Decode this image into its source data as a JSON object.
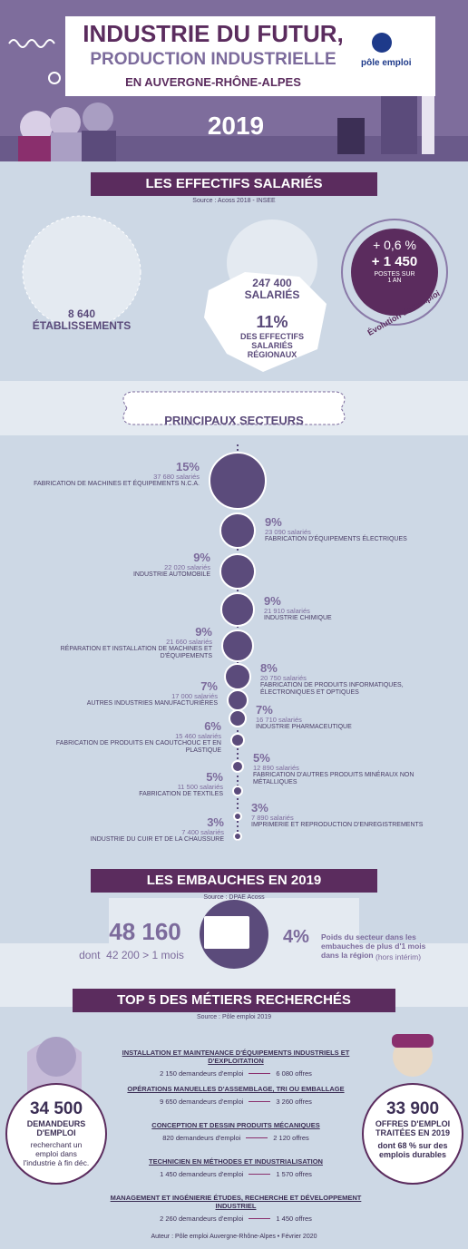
{
  "header": {
    "title": "INDUSTRIE DU FUTUR,",
    "subtitle": "PRODUCTION INDUSTRIELLE",
    "region": "EN AUVERGNE-RHÔNE-ALPES",
    "year": "2019",
    "logo": "pôle emploi"
  },
  "effectifs": {
    "title": "LES EFFECTIFS SALARIÉS",
    "source": "Source : Acoss 2018 - INSEE",
    "etablissements": {
      "value": "8 640",
      "label": "ÉTABLISSEMENTS"
    },
    "salaries": {
      "value": "247 400",
      "label": "SALARIÉS"
    },
    "share": {
      "value": "11%",
      "label": "DES EFFECTIFS SALARIÉS RÉGIONAUX"
    },
    "evolution": {
      "pct": "+ 0,6 %",
      "count": "+ 1 450",
      "label": "POSTES SUR 1 AN",
      "caption": "Évolution de l'emploi"
    }
  },
  "secteurs": {
    "title": "PRINCIPAUX SECTEURS",
    "items": [
      {
        "pct": "15%",
        "count": "37 680 salariés",
        "label": "FABRICATION DE MACHINES ET ÉQUIPEMENTS N.C.A."
      },
      {
        "pct": "9%",
        "count": "23 090 salariés",
        "label": "FABRICATION D'ÉQUIPEMENTS ÉLECTRIQUES"
      },
      {
        "pct": "9%",
        "count": "22 020 salariés",
        "label": "INDUSTRIE AUTOMOBILE"
      },
      {
        "pct": "9%",
        "count": "21 910 salariés",
        "label": "INDUSTRIE CHIMIQUE"
      },
      {
        "pct": "9%",
        "count": "21 660 salariés",
        "label": "RÉPARATION ET INSTALLATION DE MACHINES ET D'ÉQUIPEMENTS"
      },
      {
        "pct": "8%",
        "count": "20 750 salariés",
        "label": "FABRICATION DE PRODUITS INFORMATIQUES, ÉLECTRONIQUES ET OPTIQUES"
      },
      {
        "pct": "7%",
        "count": "17 000 salariés",
        "label": "AUTRES INDUSTRIES MANUFACTURIÈRES"
      },
      {
        "pct": "7%",
        "count": "16 710 salariés",
        "label": "INDUSTRIE PHARMACEUTIQUE"
      },
      {
        "pct": "6%",
        "count": "15 460 salariés",
        "label": "FABRICATION DE PRODUITS EN CAOUTCHOUC ET EN PLASTIQUE"
      },
      {
        "pct": "5%",
        "count": "12 890 salariés",
        "label": "FABRICATION D'AUTRES PRODUITS MINÉRAUX NON MÉTALLIQUES"
      },
      {
        "pct": "5%",
        "count": "11 500 salariés",
        "label": "FABRICATION DE TEXTILES"
      },
      {
        "pct": "3%",
        "count": "7 890 salariés",
        "label": "IMPRIMERIE ET REPRODUCTION D'ENREGISTREMENTS"
      },
      {
        "pct": "3%",
        "count": "7 400 salariés",
        "label": "INDUSTRIE DU CUIR ET DE LA CHAUSSURE"
      }
    ]
  },
  "embauches": {
    "title": "LES EMBAUCHES EN 2019",
    "source": "Source : DPAE Acoss",
    "total": "48 160",
    "detail": "dont  42 200 > 1 mois",
    "pct": "4%",
    "text": "Poids du secteur dans les embauches de plus d'1 mois dans la région",
    "note": "(hors intérim)"
  },
  "top5": {
    "title": "TOP 5 DES MÉTIERS RECHERCHÉS",
    "source": "Source : Pôle emploi 2019",
    "jobs": [
      {
        "title": "INSTALLATION ET MAINTENANCE D'ÉQUIPEMENTS INDUSTRIELS ET D'EXPLOITATION",
        "demandeurs": "2 150 demandeurs d'emploi",
        "offres": "6 080 offres"
      },
      {
        "title": "OPÉRATIONS MANUELLES D'ASSEMBLAGE, TRI OU EMBALLAGE",
        "demandeurs": "9 650 demandeurs d'emploi",
        "offres": "3 260 offres"
      },
      {
        "title": "CONCEPTION ET DESSIN PRODUITS MÉCANIQUES",
        "demandeurs": "820 demandeurs d'emploi",
        "offres": "2 120 offres"
      },
      {
        "title": "TECHNICIEN EN MÉTHODES ET INDUSTRIALISATION",
        "demandeurs": "1 450 demandeurs d'emploi",
        "offres": "1 570 offres"
      },
      {
        "title": "MANAGEMENT ET INGÉNIERIE ÉTUDES, RECHERCHE ET DÉVELOPPEMENT INDUSTRIEL",
        "demandeurs": "2 260 demandeurs d'emploi",
        "offres": "1 450 offres"
      }
    ],
    "demandeurs": {
      "value": "34 500",
      "label": "DEMANDEURS D'EMPLOI",
      "text": "recherchant un emploi dans l'industrie à fin déc."
    },
    "offres": {
      "value": "33 900",
      "label": "OFFRES D'EMPLOI TRAITÉES EN 2019",
      "text": "dont 68 % sur des emplois durables"
    }
  },
  "footer": "Auteur : Pôle emploi Auvergne-Rhône-Alpes • Février 2020"
}
